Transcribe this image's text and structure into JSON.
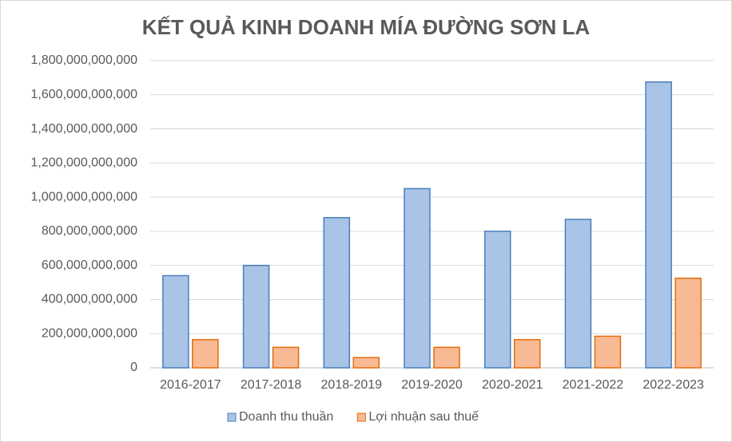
{
  "chart_data": {
    "type": "bar",
    "title": "KẾT QUẢ KINH DOANH  MÍA ĐƯỜNG SƠN LA",
    "categories": [
      "2016-2017",
      "2017-2018",
      "2018-2019",
      "2019-2020",
      "2020-2021",
      "2021-2022",
      "2022-2023"
    ],
    "series": [
      {
        "name": "Doanh thu thuần",
        "color": "#a9c4e6",
        "edgecolor": "#4a7ebb",
        "values": [
          540000000000,
          600000000000,
          880000000000,
          1050000000000,
          800000000000,
          870000000000,
          1675000000000
        ]
      },
      {
        "name": "Lợi nhuận sau thuế",
        "color": "#f8b995",
        "edgecolor": "#e46c0a",
        "values": [
          165000000000,
          120000000000,
          60000000000,
          120000000000,
          165000000000,
          185000000000,
          525000000000
        ]
      }
    ],
    "ylim": [
      0,
      1800000000000
    ],
    "yticks": [
      0,
      {
        "value": 200000000000,
        "label": "200,000,000,000"
      },
      {
        "value": 400000000000,
        "label": "400,000,000,000"
      },
      {
        "value": 600000000000,
        "label": "600,000,000,000"
      },
      {
        "value": 800000000000,
        "label": "800,000,000,000"
      },
      {
        "value": 1000000000000,
        "label": "1,000,000,000,000"
      },
      {
        "value": 1200000000000,
        "label": "1,200,000,000,000"
      },
      {
        "value": 1400000000000,
        "label": "1,400,000,000,000"
      },
      {
        "value": 1600000000000,
        "label": "1,600,000,000,000"
      },
      {
        "value": 1800000000000,
        "label": "1,800,000,000,000"
      }
    ],
    "grid": true,
    "legend": "bottom"
  }
}
